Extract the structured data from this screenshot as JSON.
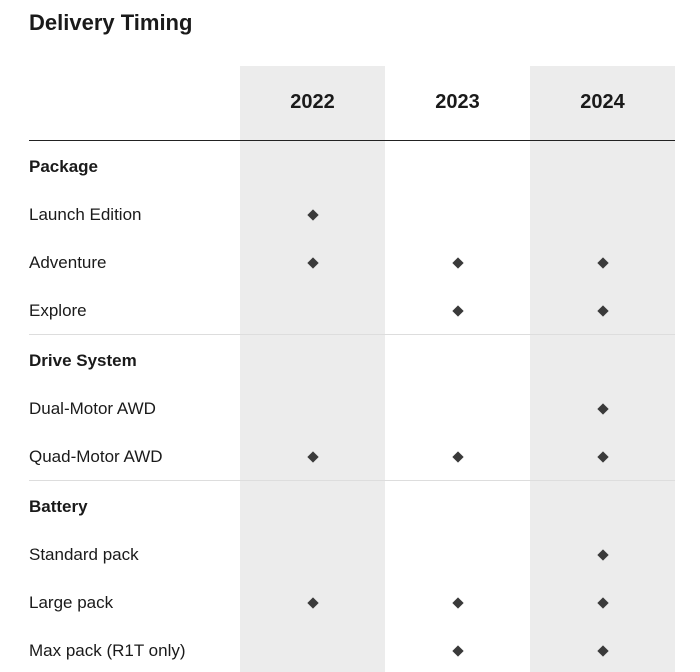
{
  "title": "Delivery Timing",
  "columns": [
    "2022",
    "2023",
    "2024"
  ],
  "sections": [
    {
      "name": "Package",
      "rows": [
        {
          "label": "Launch Edition",
          "available": [
            true,
            false,
            false
          ]
        },
        {
          "label": "Adventure",
          "available": [
            true,
            true,
            true
          ]
        },
        {
          "label": "Explore",
          "available": [
            false,
            true,
            true
          ]
        }
      ]
    },
    {
      "name": "Drive System",
      "rows": [
        {
          "label": "Dual-Motor AWD",
          "available": [
            false,
            false,
            true
          ]
        },
        {
          "label": "Quad-Motor AWD",
          "available": [
            true,
            true,
            true
          ]
        }
      ]
    },
    {
      "name": "Battery",
      "rows": [
        {
          "label": "Standard pack",
          "available": [
            false,
            false,
            true
          ]
        },
        {
          "label": "Large pack",
          "available": [
            true,
            true,
            true
          ]
        },
        {
          "label": "Max pack (R1T only)",
          "available": [
            false,
            true,
            true
          ]
        }
      ]
    }
  ]
}
